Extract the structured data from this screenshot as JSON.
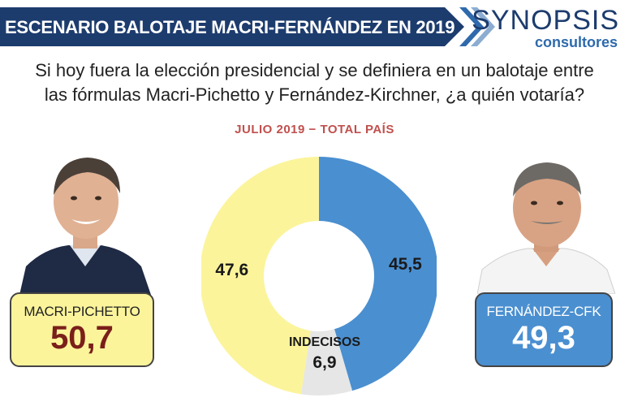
{
  "header": {
    "title": "ESCENARIO BALOTAJE MACRI-FERNÁNDEZ EN 2019",
    "logo_main": "SYNOPSIS",
    "logo_sub": "consultores"
  },
  "question": {
    "line1": "Si hoy fuera la elección presidencial y se definiera en un balotaje entre",
    "line2": "las fórmulas Macri-Pichetto y Fernández-Kirchner, ¿a quién votaría?"
  },
  "subtitle": "JULIO 2019 − TOTAL PAÍS",
  "candidates": {
    "left": {
      "name": "MACRI-PICHETTO",
      "value": "50,7",
      "color": "#fbf49b"
    },
    "right": {
      "name": "FERNÁNDEZ-CFK",
      "value": "49,3",
      "color": "#4a8fd0"
    }
  },
  "chart_data": {
    "type": "pie",
    "donut": true,
    "series": [
      {
        "label": "45,5",
        "value": 45.5,
        "color": "#4a8fd0"
      },
      {
        "label": "6,9",
        "value": 6.9,
        "color": "#e6e6e6",
        "name": "INDECISOS"
      },
      {
        "label": "47,6",
        "value": 47.6,
        "color": "#fbf49b"
      }
    ],
    "annotations": [
      "INDECISOS"
    ]
  }
}
